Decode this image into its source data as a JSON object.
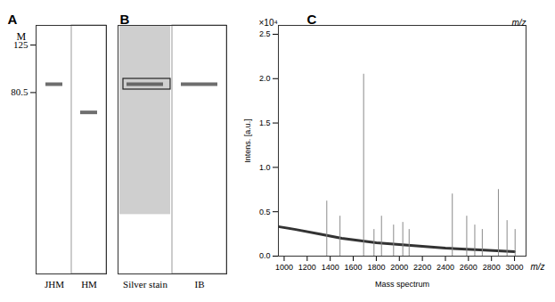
{
  "chart_data": [
    {
      "type": "gel",
      "title": "A",
      "y_label": "M",
      "categories": [
        "JHM",
        "HM"
      ],
      "values": [
        87,
        67
      ],
      "ylim": [
        15,
        150
      ],
      "yticks": [
        125,
        80.5
      ],
      "log": "y",
      "color": "#555555"
    },
    {
      "type": "gel",
      "title": "B",
      "categories": [
        "Silver stain",
        "IB"
      ],
      "values": [
        87,
        87
      ],
      "smear_low": [
        26,
        null
      ],
      "smear_high": [
        150,
        null
      ],
      "markers": [
        "box",
        null
      ],
      "ylim": [
        15,
        150
      ],
      "log": "y",
      "tick_labels": false,
      "color": "#555555"
    },
    {
      "type": "stem",
      "title": "C",
      "x_label": "Mass spectrum",
      "y_label": "Intens. [a.u.]",
      "annotations": [
        "×10⁴",
        "m/z",
        "m/z"
      ],
      "x": [
        1370,
        1485,
        1690,
        1780,
        1845,
        1950,
        2030,
        2085,
        2460,
        2585,
        2655,
        2720,
        2860,
        2935,
        3005
      ],
      "values": [
        0.62,
        0.45,
        2.05,
        0.3,
        0.45,
        0.35,
        0.38,
        0.3,
        0.7,
        0.45,
        0.35,
        0.3,
        0.75,
        0.4,
        0.3
      ],
      "baseline_x": [
        960,
        1100,
        1300,
        1500,
        1800,
        2100,
        2400,
        2700,
        3000
      ],
      "baseline_values": [
        0.33,
        0.3,
        0.25,
        0.2,
        0.15,
        0.12,
        0.09,
        0.07,
        0.05
      ],
      "xlim": [
        950,
        3100
      ],
      "ylim": [
        0,
        2.6
      ],
      "xticks": [
        1000,
        1200,
        1400,
        1600,
        1800,
        2000,
        2200,
        2400,
        2600,
        2800,
        3000
      ],
      "yticks": [
        {
          "value": 0,
          "label": "0.0"
        },
        0.5,
        {
          "value": 1,
          "label": "1.0"
        },
        1.5,
        {
          "value": 2,
          "label": "2.0"
        },
        2.5
      ],
      "color": "#8a8a8a"
    }
  ]
}
